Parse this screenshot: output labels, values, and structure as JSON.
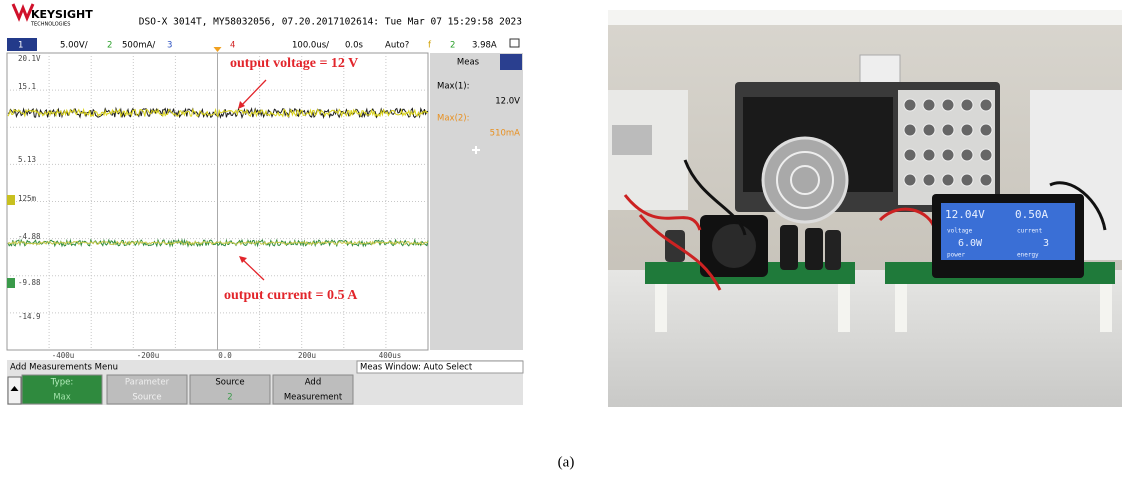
{
  "scope": {
    "brand": "KEYSIGHT",
    "brand_sub": "TECHNOLOGIES",
    "header": "DSO-X 3014T, MY58032056, 07.20.2017102614: Tue Mar 07 15:29:58 2023",
    "channel_bar": [
      "1",
      "5.00V/",
      "2",
      "500mA/",
      "3",
      "4",
      "100.0us/",
      "0.0s",
      "Auto?",
      "f",
      "2",
      "3.98A"
    ],
    "y_labels": [
      "20.1V",
      "15.1",
      "5.13",
      "125m",
      "-4.88",
      "-9.88",
      "-14.9"
    ],
    "x_labels": [
      "-400u",
      "-200u",
      "0.0",
      "200u",
      "400us"
    ],
    "annotations": [
      "output voltage = 12 V",
      "output current = 0.5 A"
    ],
    "meas": {
      "title": "Meas",
      "items": [
        {
          "label": "Max(1):",
          "value": "12.0V"
        },
        {
          "label": "Max(2):",
          "value": "510mA"
        }
      ]
    },
    "menu": {
      "title": "Add Measurements Menu",
      "window": "Meas Window: Auto Select",
      "softkeys": [
        {
          "label": "Type:",
          "value": "Max"
        },
        {
          "label": "Parameter",
          "value": "Source"
        },
        {
          "label": "Source",
          "value": "2"
        },
        {
          "label": "Add",
          "value": "Measurement"
        }
      ]
    }
  },
  "photo": {
    "meter": [
      "12.04V",
      "0.50A",
      "voltage",
      "current",
      "6.0W",
      "3",
      "power",
      "energy"
    ]
  },
  "caption": "(a)"
}
